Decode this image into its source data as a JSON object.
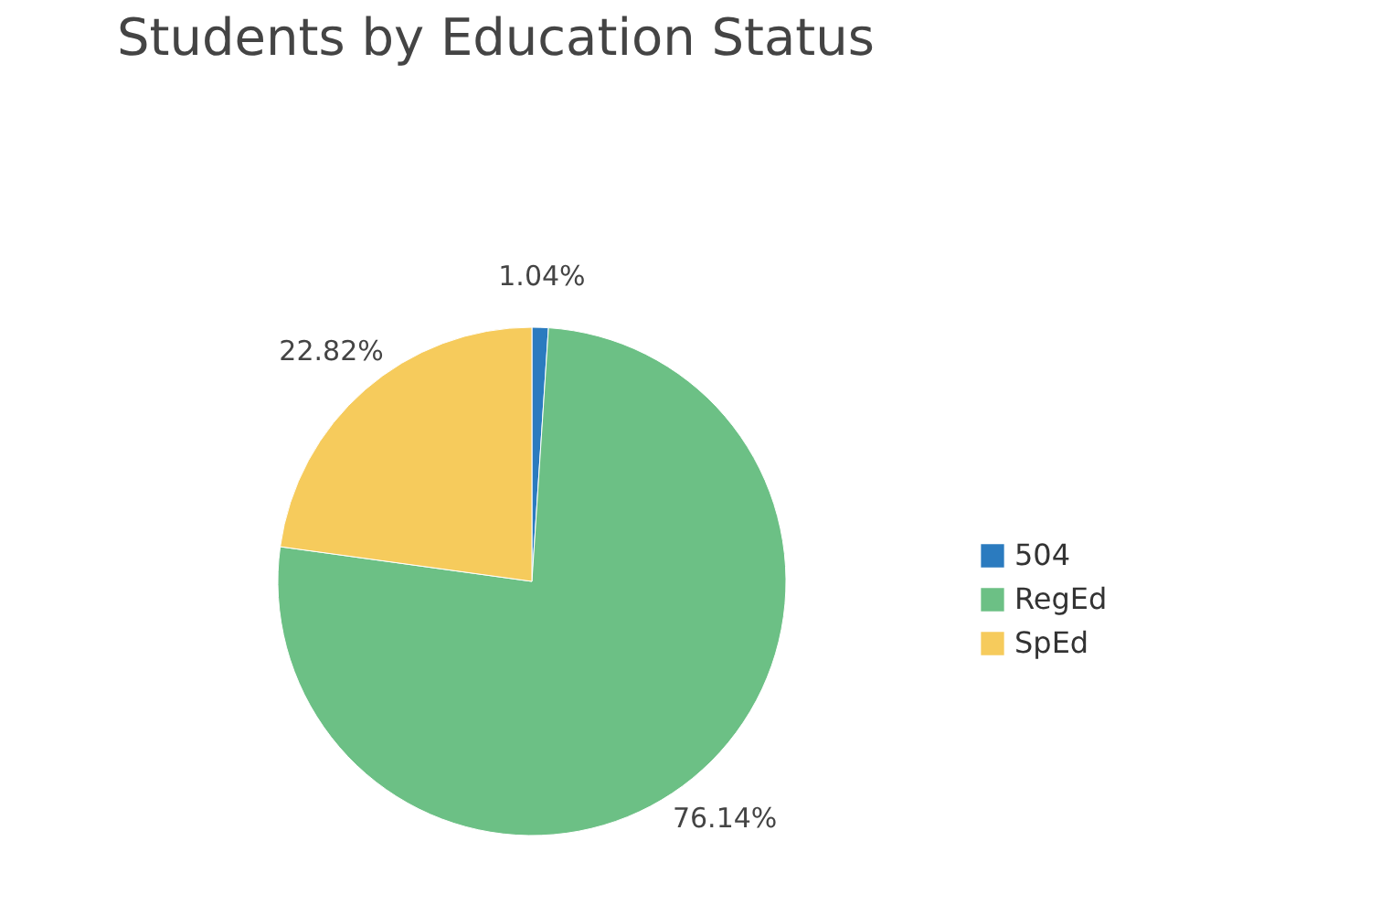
{
  "chart_data": {
    "type": "pie",
    "title": "Students by Education Status",
    "categories": [
      "504",
      "RegEd",
      "SpEd"
    ],
    "values": [
      1.04,
      76.14,
      22.82
    ],
    "colors": [
      "#2b7bbf",
      "#6cc085",
      "#f6cb5c"
    ],
    "value_labels": [
      "1.04%",
      "76.14%",
      "22.82%"
    ],
    "legend": "right"
  }
}
